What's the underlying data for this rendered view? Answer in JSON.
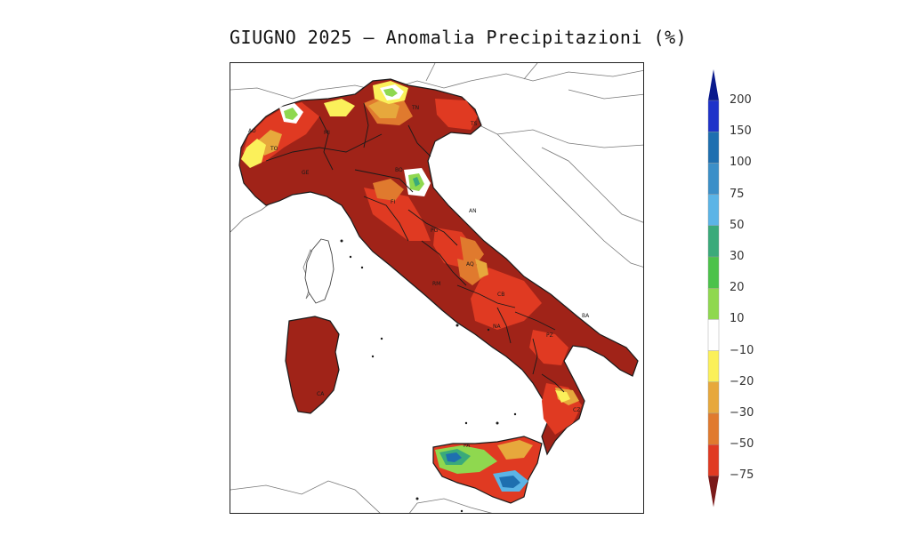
{
  "title": "GIUGNO 2025 — Anomalia Precipitazioni (%)",
  "legend": {
    "top_color": "#0a1a8c",
    "bottom_color": "#7a1a1a",
    "classes": [
      {
        "label": "200",
        "color": "#1f33c9"
      },
      {
        "label": "150",
        "color": "#1e6fb0"
      },
      {
        "label": "100",
        "color": "#3b8fc8"
      },
      {
        "label": "75",
        "color": "#5bb4e6"
      },
      {
        "label": "50",
        "color": "#3aaa7a"
      },
      {
        "label": "30",
        "color": "#4cc24a"
      },
      {
        "label": "20",
        "color": "#8fd84f"
      },
      {
        "label": "10",
        "color": "#ffffff"
      },
      {
        "label": "−10",
        "color": "#fbf05a"
      },
      {
        "label": "−20",
        "color": "#e7a83c"
      },
      {
        "label": "−30",
        "color": "#e07a2e"
      },
      {
        "label": "−50",
        "color": "#e03a22"
      },
      {
        "label": "−75",
        "color": "#9e2218"
      }
    ]
  },
  "regions": [
    {
      "code": "AO"
    },
    {
      "code": "TO"
    },
    {
      "code": "MI"
    },
    {
      "code": "TN"
    },
    {
      "code": "TS"
    },
    {
      "code": "GE"
    },
    {
      "code": "BO"
    },
    {
      "code": "FI"
    },
    {
      "code": "AN"
    },
    {
      "code": "PG"
    },
    {
      "code": "AQ"
    },
    {
      "code": "RM"
    },
    {
      "code": "CB"
    },
    {
      "code": "NA"
    },
    {
      "code": "PZ"
    },
    {
      "code": "BA"
    },
    {
      "code": "CZ"
    },
    {
      "code": "PA"
    },
    {
      "code": "CA"
    }
  ]
}
